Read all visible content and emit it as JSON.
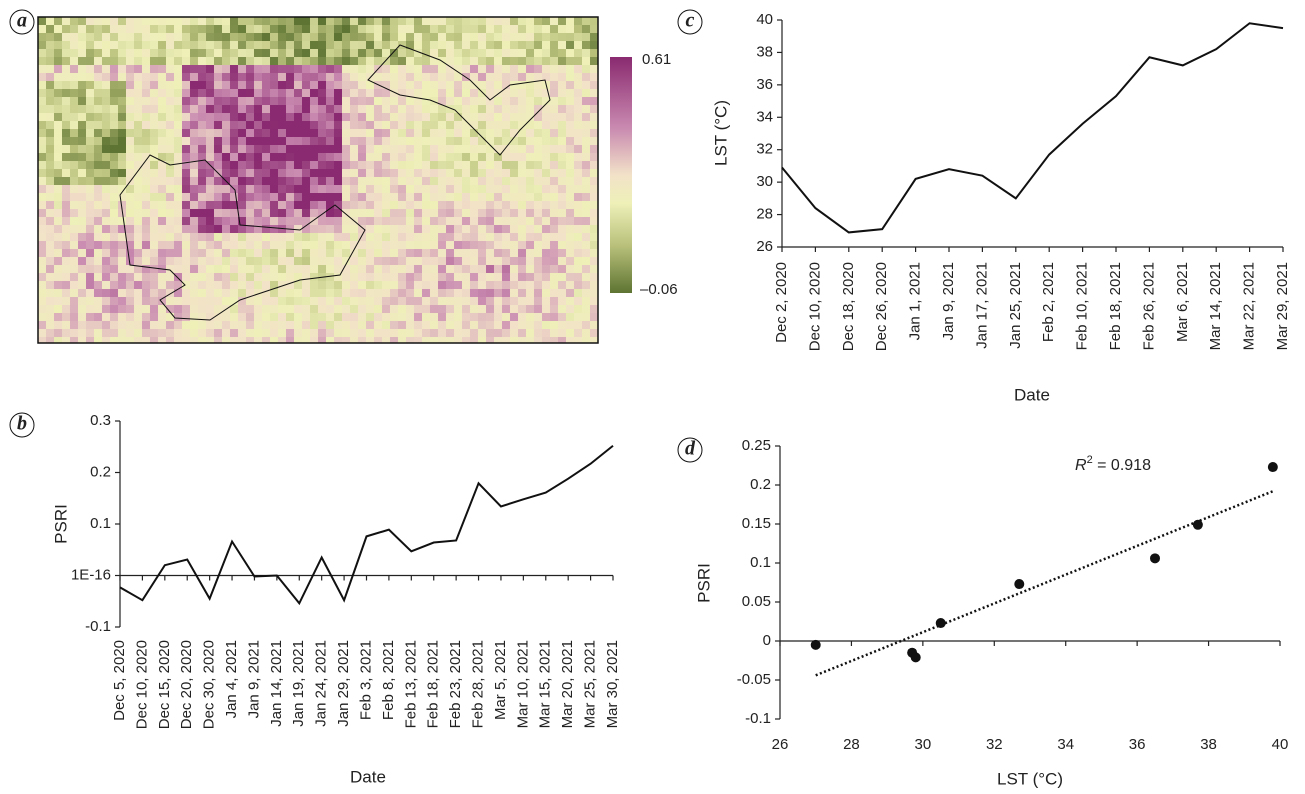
{
  "panel_labels": [
    "a",
    "b",
    "c",
    "d"
  ],
  "colorbar": {
    "max_label": "0.61",
    "min_label": "–0.06"
  },
  "chart_data": [
    {
      "type": "line",
      "y_label": "PSRI",
      "x_label": "Date",
      "categories": [
        "Dec 5, 2020",
        "Dec 10, 2020",
        "Dec 15, 2020",
        "Dec 20, 2020",
        "Dec 30, 2020",
        "Jan 4, 2021",
        "Jan 9, 2021",
        "Jan 14, 2021",
        "Jan 19, 2021",
        "Jan 24, 2021",
        "Jan 29, 2021",
        "Feb 3, 2021",
        "Feb 8, 2021",
        "Feb 13, 2021",
        "Feb 18, 2021",
        "Feb 23, 2021",
        "Feb 28, 2021",
        "Mar 5, 2021",
        "Mar 10, 2021",
        "Mar 15, 2021",
        "Mar 20, 2021",
        "Mar 25, 2021",
        "Mar 30, 2021"
      ],
      "values": [
        -0.023,
        -0.048,
        0.02,
        0.031,
        -0.045,
        0.066,
        -0.002,
        0,
        -0.054,
        0.035,
        -0.048,
        0.076,
        0.089,
        0.047,
        0.064,
        0.068,
        0.179,
        0.134,
        0.148,
        0.161,
        0.188,
        0.217,
        0.252
      ],
      "color": "#111111",
      "ylim": [
        -0.1,
        0.3
      ],
      "yticks": [
        -0.1,
        {
          "value": 0,
          "label": "1E-16"
        },
        0.1,
        0.2,
        0.3
      ]
    },
    {
      "type": "line",
      "y_label": "LST (°C)",
      "x_label": "Date",
      "categories": [
        "Dec 2, 2020",
        "Dec 10, 2020",
        "Dec 18, 2020",
        "Dec 26, 2020",
        "Jan 1, 2021",
        "Jan 9, 2021",
        "Jan 17, 2021",
        "Jan 25, 2021",
        "Feb 2, 2021",
        "Feb 10, 2021",
        "Feb 18, 2021",
        "Feb 26, 2021",
        "Mar 6, 2021",
        "Mar 14, 2021",
        "Mar 22, 2021",
        "Mar 29, 2021"
      ],
      "values": [
        30.9,
        28.4,
        26.9,
        27.1,
        30.2,
        30.8,
        30.4,
        29.0,
        31.7,
        33.6,
        35.3,
        37.7,
        37.2,
        38.2,
        39.8,
        39.5
      ],
      "color": "#111111",
      "ylim": [
        26,
        40
      ],
      "yticks": [
        26,
        28,
        30,
        32,
        34,
        36,
        38,
        40
      ]
    },
    {
      "type": "scatter",
      "y_label": "PSRI",
      "x_label": "LST (°C)",
      "annotation": {
        "symbol": "R",
        "exponent": "2",
        "text": " = 0.918"
      },
      "x": [
        27.0,
        29.7,
        29.8,
        30.5,
        32.7,
        36.5,
        37.7,
        39.8
      ],
      "values": [
        -0.005,
        -0.015,
        -0.021,
        0.023,
        0.073,
        0.106,
        0.149,
        0.223
      ],
      "color": "#111111",
      "trendline": {
        "x": [
          27.0,
          39.8
        ],
        "y": [
          -0.044,
          0.192
        ]
      },
      "xlim": [
        26,
        40
      ],
      "xticks": [
        26,
        28,
        30,
        32,
        34,
        36,
        38,
        40
      ],
      "ylim": [
        -0.1,
        0.25
      ],
      "yticks": [
        -0.1,
        -0.05,
        0,
        0.05,
        0.1,
        0.15,
        0.2,
        0.25
      ]
    }
  ]
}
